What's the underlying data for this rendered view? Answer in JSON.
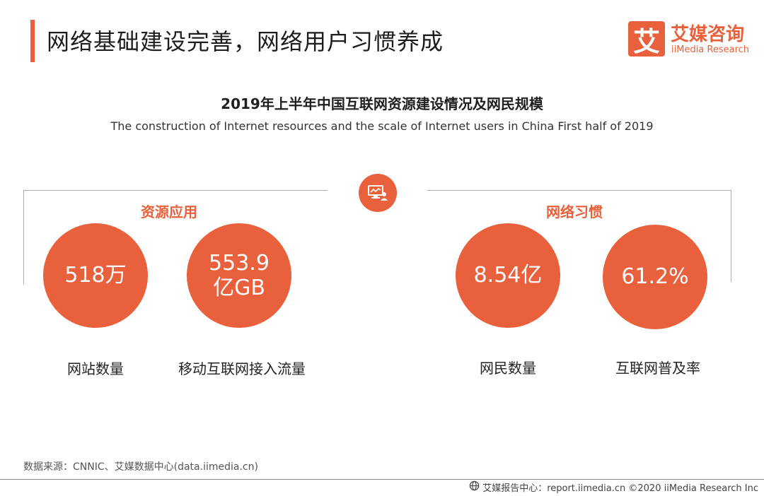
{
  "header": {
    "title": "网络基础建设完善，网络用户习惯养成",
    "logo_mark": "艾",
    "logo_cn": "艾媒咨询",
    "logo_en": "iiMedia Research"
  },
  "chart": {
    "title": "2019年上半年中国互联网资源建设情况及网民规模",
    "subtitle": "The construction of Internet resources and the scale of Internet users in China First half of 2019",
    "center_icon": "monitor-user-icon"
  },
  "sections": {
    "left_label": "资源应用",
    "right_label": "网络习惯"
  },
  "metrics": [
    {
      "value": "518万",
      "label": "网站数量"
    },
    {
      "value": "553.9\n亿GB",
      "label": "移动互联网接入流量"
    },
    {
      "value": "8.54亿",
      "label": "网民数量"
    },
    {
      "value": "61.2%",
      "label": "互联网普及率"
    }
  ],
  "footer": {
    "source": "数据来源：CNNIC、艾媒数据中心(data.iimedia.cn)",
    "report_icon": "globe-icon",
    "copyright": "艾媒报告中心：report.iimedia.cn  ©2020  iiMedia Research  Inc"
  },
  "colors": {
    "accent": "#e8613c",
    "rule": "#b0b0b0"
  }
}
